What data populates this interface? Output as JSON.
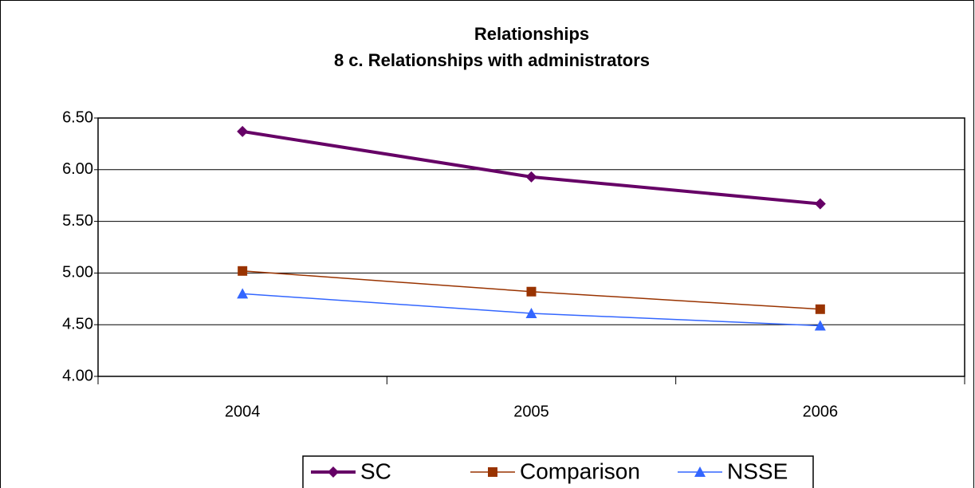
{
  "chart_data": {
    "type": "line",
    "title": "Relationships",
    "subtitle": "8 c. Relationships with administrators",
    "categories": [
      "2004",
      "2005",
      "2006"
    ],
    "series": [
      {
        "name": "SC",
        "color": "#660066",
        "marker": "diamond",
        "values": [
          6.37,
          5.93,
          5.67
        ]
      },
      {
        "name": "Comparison",
        "color": "#993300",
        "marker": "square",
        "values": [
          5.02,
          4.82,
          4.65
        ]
      },
      {
        "name": "NSSE",
        "color": "#3366ff",
        "marker": "triangle",
        "values": [
          4.8,
          4.61,
          4.49
        ]
      }
    ],
    "ylim": [
      4.0,
      6.5
    ],
    "yticks": [
      {
        "value": 4.0,
        "label": "4.00"
      },
      {
        "value": 4.5,
        "label": "4.50"
      },
      {
        "value": 5.0,
        "label": "5.00"
      },
      {
        "value": 5.5,
        "label": "5.50"
      },
      {
        "value": 6.0,
        "label": "6.00"
      },
      {
        "value": 6.5,
        "label": "6.50"
      }
    ],
    "grid": true,
    "legend": "bottom"
  }
}
